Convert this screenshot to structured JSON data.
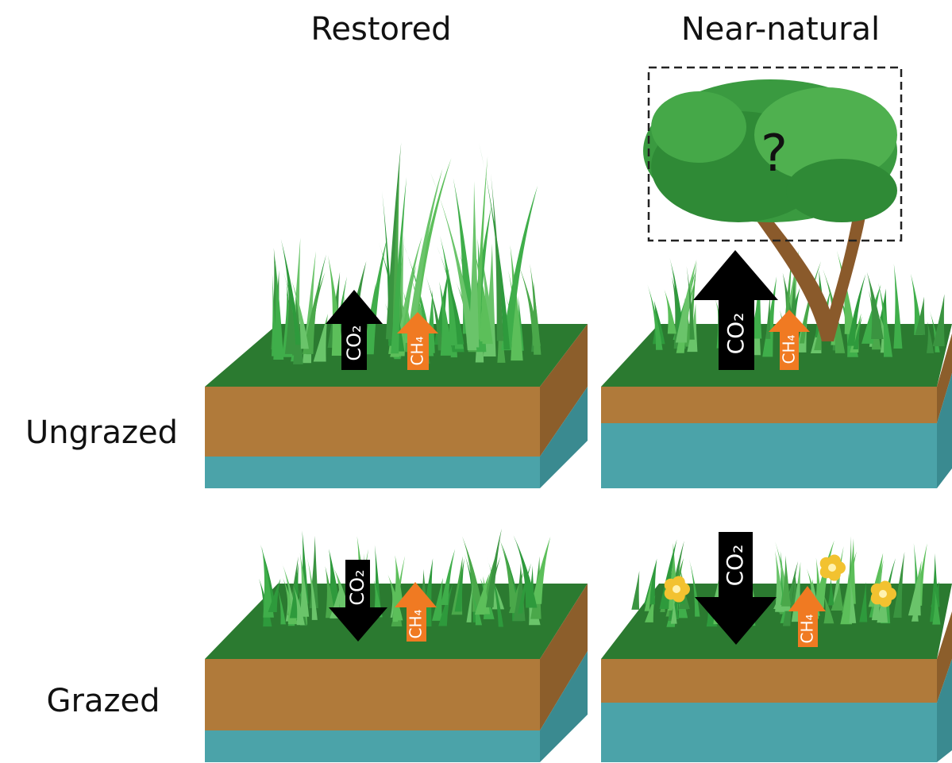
{
  "columns": [
    "Restored",
    "Near-natural"
  ],
  "rows": [
    "Ungrazed",
    "Grazed"
  ],
  "panels": [
    {
      "co2": "CO₂",
      "ch4": "CH₄"
    },
    {
      "co2": "CO₂",
      "ch4": "CH₄",
      "note": "?"
    },
    {
      "co2": "CO₂",
      "ch4": "CH₄"
    },
    {
      "co2": "CO₂",
      "ch4": "CH₄"
    }
  ]
}
